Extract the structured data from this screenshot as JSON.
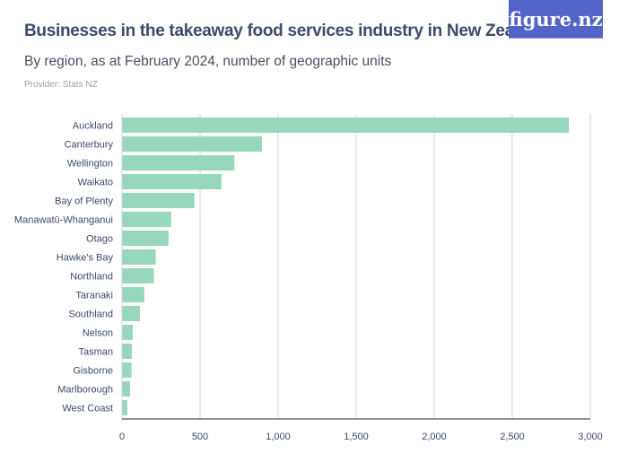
{
  "header": {
    "title": "Businesses in the takeaway food services industry in New Zealand",
    "subtitle": "By region, as at February 2024, number of geographic units",
    "provider": "Provider: Stats NZ",
    "logo": "figure.nz"
  },
  "chart_data": {
    "type": "bar",
    "orientation": "horizontal",
    "title": "Businesses in the takeaway food services industry in New Zealand",
    "subtitle": "By region, as at February 2024, number of geographic units",
    "categories": [
      "Auckland",
      "Canterbury",
      "Wellington",
      "Waikato",
      "Bay of Plenty",
      "Manawatū-Whanganui",
      "Otago",
      "Hawke's Bay",
      "Northland",
      "Taranaki",
      "Southland",
      "Nelson",
      "Tasman",
      "Gisborne",
      "Marlborough",
      "West Coast"
    ],
    "values": [
      2862,
      897,
      720,
      637,
      464,
      315,
      298,
      216,
      204,
      143,
      115,
      69,
      63,
      61,
      52,
      34
    ],
    "xlim": [
      0,
      3000
    ],
    "xticks": [
      0,
      500,
      1000,
      1500,
      2000,
      2500,
      3000
    ],
    "xtick_labels": [
      "0",
      "500",
      "1,000",
      "1,500",
      "2,000",
      "2,500",
      "3,000"
    ],
    "grid": true,
    "bar_color": "#97d7bb"
  }
}
